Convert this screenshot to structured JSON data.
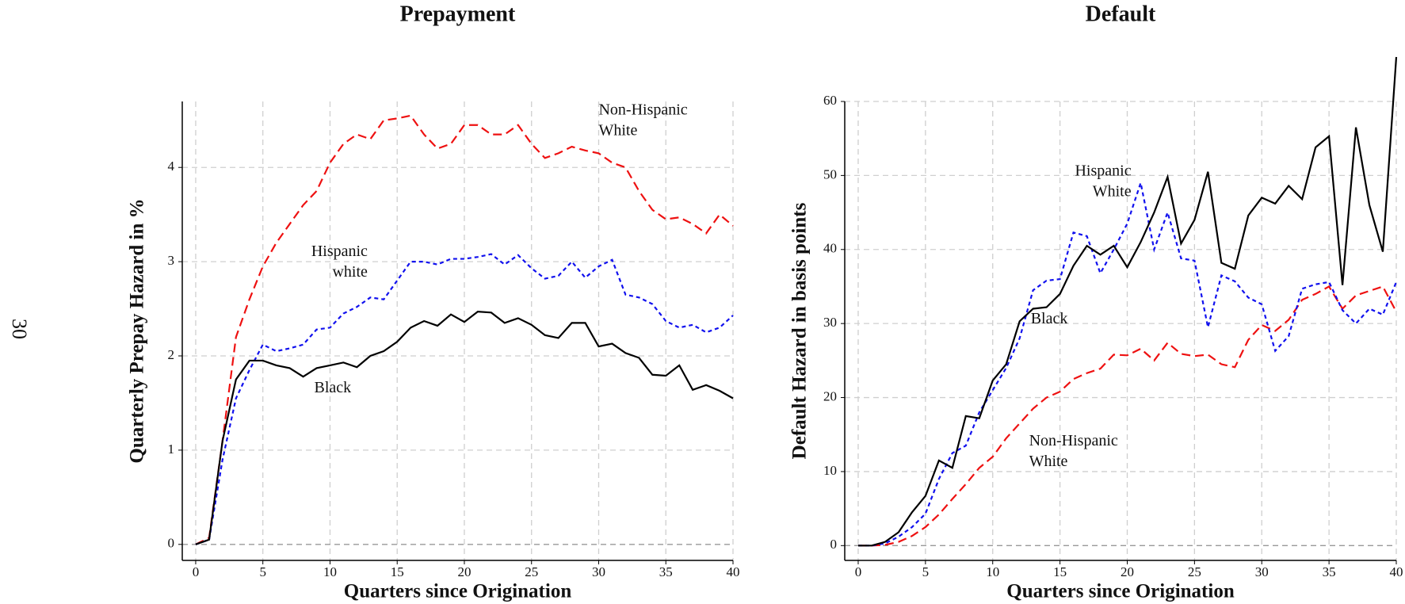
{
  "page_number": "30",
  "chart_data": [
    {
      "type": "line",
      "title": "Prepayment",
      "xlabel": "Quarters since Origination",
      "ylabel": "Quarterly Prepay Hazard in %",
      "x": [
        0,
        1,
        2,
        3,
        4,
        5,
        6,
        7,
        8,
        9,
        10,
        11,
        12,
        13,
        14,
        15,
        16,
        17,
        18,
        19,
        20,
        21,
        22,
        23,
        24,
        25,
        26,
        27,
        28,
        29,
        30,
        31,
        32,
        33,
        34,
        35,
        36,
        37,
        38,
        39,
        40
      ],
      "xlim": [
        -1,
        40
      ],
      "ylim": [
        -0.17,
        4.7
      ],
      "xticks": [
        0,
        5,
        10,
        15,
        20,
        25,
        30,
        35,
        40
      ],
      "yticks": [
        0,
        1,
        2,
        3,
        4
      ],
      "grid": true,
      "series": [
        {
          "label_lines": [
            "Non-Hispanic",
            "White"
          ],
          "color": "#ee1111",
          "dash": "11,6",
          "values": [
            0,
            0.07,
            1.1,
            2.2,
            2.6,
            2.95,
            3.2,
            3.4,
            3.6,
            3.75,
            4.05,
            4.25,
            4.35,
            4.3,
            4.5,
            4.52,
            4.55,
            4.35,
            4.2,
            4.25,
            4.45,
            4.45,
            4.35,
            4.35,
            4.45,
            4.25,
            4.1,
            4.15,
            4.22,
            4.18,
            4.15,
            4.05,
            4.0,
            3.75,
            3.55,
            3.45,
            3.47,
            3.4,
            3.3,
            3.5,
            3.38
          ]
        },
        {
          "label_lines": [
            "Hispanic",
            "white"
          ],
          "color": "#1111ee",
          "dash": "5,4",
          "values": [
            0,
            0.05,
            0.9,
            1.55,
            1.85,
            2.12,
            2.05,
            2.08,
            2.12,
            2.28,
            2.3,
            2.45,
            2.52,
            2.62,
            2.6,
            2.8,
            3.0,
            3.0,
            2.97,
            3.03,
            3.03,
            3.05,
            3.08,
            2.97,
            3.07,
            2.93,
            2.82,
            2.85,
            3.0,
            2.83,
            2.95,
            3.02,
            2.65,
            2.62,
            2.55,
            2.37,
            2.3,
            2.33,
            2.25,
            2.3,
            2.43
          ]
        },
        {
          "label_lines": [
            "Black"
          ],
          "color": "#000000",
          "dash": "none",
          "values": [
            0,
            0.05,
            1.1,
            1.75,
            1.95,
            1.95,
            1.9,
            1.87,
            1.78,
            1.87,
            1.9,
            1.93,
            1.88,
            2.0,
            2.05,
            2.15,
            2.3,
            2.37,
            2.32,
            2.44,
            2.36,
            2.47,
            2.46,
            2.35,
            2.4,
            2.33,
            2.22,
            2.19,
            2.35,
            2.35,
            2.1,
            2.13,
            2.03,
            1.98,
            1.8,
            1.79,
            1.9,
            1.64,
            1.69,
            1.63,
            1.55
          ]
        }
      ]
    },
    {
      "type": "line",
      "title": "Default",
      "xlabel": "Quarters since Origination",
      "ylabel": "Default Hazard in basis points",
      "x": [
        0,
        1,
        2,
        3,
        4,
        5,
        6,
        7,
        8,
        9,
        10,
        11,
        12,
        13,
        14,
        15,
        16,
        17,
        18,
        19,
        20,
        21,
        22,
        23,
        24,
        25,
        26,
        27,
        28,
        29,
        30,
        31,
        32,
        33,
        34,
        35,
        36,
        37,
        38,
        39,
        40
      ],
      "xlim": [
        -1,
        40
      ],
      "ylim": [
        -2,
        60
      ],
      "xticks": [
        0,
        5,
        10,
        15,
        20,
        25,
        30,
        35,
        40
      ],
      "yticks": [
        0,
        10,
        20,
        30,
        40,
        50,
        60
      ],
      "grid": true,
      "series": [
        {
          "label_lines": [
            "Non-Hispanic",
            "White"
          ],
          "color": "#ee1111",
          "dash": "11,6",
          "values": [
            0,
            0,
            0.1,
            0.5,
            1.3,
            2.5,
            4.2,
            6.3,
            8.3,
            10.5,
            12,
            14.5,
            16.5,
            18.5,
            20,
            20.8,
            22.5,
            23.3,
            23.9,
            25.8,
            25.7,
            26.6,
            25,
            27.4,
            25.9,
            25.6,
            25.8,
            24.5,
            24.1,
            27.8,
            29.8,
            29,
            30.5,
            33.2,
            34,
            35,
            32,
            33.8,
            34.4,
            35,
            31.6
          ]
        },
        {
          "label_lines": [
            "Hispanic",
            "White"
          ],
          "color": "#1111ee",
          "dash": "5,4",
          "values": [
            0,
            0,
            0.3,
            1.2,
            2.5,
            4.3,
            9,
            12.5,
            13.5,
            18,
            21,
            24,
            28,
            34.5,
            35.8,
            36,
            42.3,
            41.8,
            36.8,
            40,
            43.5,
            49,
            40,
            45,
            38.8,
            38.5,
            29.5,
            36.5,
            35.7,
            33.5,
            32.6,
            26.3,
            28.3,
            34.7,
            35.3,
            35.6,
            31.8,
            30,
            32,
            31.2,
            35.6
          ]
        },
        {
          "label_lines": [
            "Black"
          ],
          "color": "#000000",
          "dash": "none",
          "values": [
            0,
            0,
            0.5,
            1.8,
            4.5,
            6.7,
            11.5,
            10.5,
            17.5,
            17.2,
            22.3,
            24.5,
            30.3,
            32,
            32.2,
            34,
            37.8,
            40.5,
            39.3,
            40.5,
            37.6,
            41,
            45,
            49.8,
            40.8,
            44,
            50.5,
            38.2,
            37.4,
            44.6,
            47,
            46.2,
            48.6,
            46.8,
            53.8,
            55.3,
            35.2,
            56.5,
            46,
            39.7,
            66
          ]
        }
      ]
    }
  ]
}
